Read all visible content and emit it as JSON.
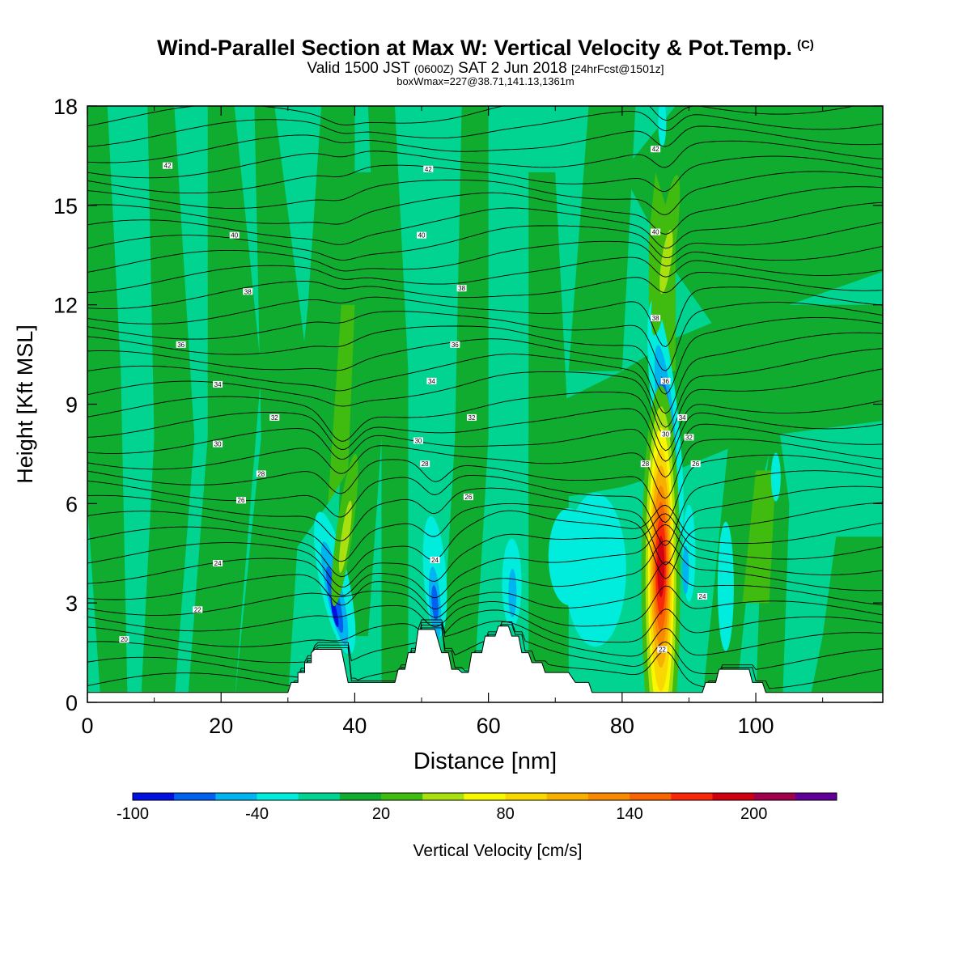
{
  "header": {
    "title": "Wind-Parallel Section at Max W: Vertical Velocity & Pot.Temp.",
    "title_mark": "(C)",
    "valid_prefix": "Valid 1500 JST",
    "valid_utc": "(0600Z)",
    "valid_date": "SAT 2 Jun 2018",
    "forecast_tag": "[24hrFcst@1501z]",
    "box_info": "boxWmax=227@38.71,141.13,1361m"
  },
  "chart_data": {
    "type": "heatmap",
    "title": "Wind-Parallel Section at Max W: Vertical Velocity & Pot.Temp.",
    "xlabel": "Distance [nm]",
    "ylabel": "Height [Kft MSL]",
    "xlim": [
      0,
      119
    ],
    "ylim": [
      0,
      18
    ],
    "x_ticks": [
      0,
      20,
      40,
      60,
      80,
      100
    ],
    "y_ticks": [
      0,
      3,
      6,
      9,
      12,
      15,
      18
    ],
    "colorbar": {
      "label": "Vertical Velocity [cm/s]",
      "tick_labels": [
        "-100",
        "-40",
        "20",
        "80",
        "140",
        "200"
      ],
      "tick_values": [
        -100,
        -40,
        20,
        80,
        140,
        200
      ],
      "bins": [
        -100,
        -80,
        -60,
        -40,
        -20,
        0,
        20,
        40,
        60,
        80,
        100,
        120,
        140,
        160,
        180,
        200,
        220,
        240
      ],
      "colors": [
        "#0010e0",
        "#0060f0",
        "#00b4f0",
        "#00ecdc",
        "#00d490",
        "#10ac30",
        "#40bc10",
        "#a8e010",
        "#f8f800",
        "#f8d800",
        "#f8b000",
        "#f88a00",
        "#f86400",
        "#f82808",
        "#d00010",
        "#a0004c",
        "#600098"
      ]
    },
    "background_level": "#00d490",
    "updrafts": [
      {
        "x": 86,
        "y_center": 3.8,
        "peak_cm_s": 227,
        "label": "max W"
      },
      {
        "x": 86.5,
        "y_center": 13.5,
        "peak_cm_s": 70
      },
      {
        "x": 38.5,
        "y_center": 5,
        "peak_cm_s": 60
      }
    ],
    "downdrafts": [
      {
        "x": 37,
        "y_center": 3,
        "min_cm_s": -100
      },
      {
        "x": 86.5,
        "y_center": 8.5,
        "min_cm_s": -100
      },
      {
        "x": 52,
        "y_center": 3,
        "min_cm_s": -80
      },
      {
        "x": 63.5,
        "y_center": 3.5,
        "min_cm_s": -60
      },
      {
        "x": 76,
        "y_center": 4,
        "min_cm_s": -40
      }
    ],
    "terrain_kft": [
      [
        0,
        0.3
      ],
      [
        30,
        0.3
      ],
      [
        30.5,
        0.6
      ],
      [
        31.5,
        0.6
      ],
      [
        31.5,
        0.9
      ],
      [
        32.5,
        0.9
      ],
      [
        32.5,
        1.2
      ],
      [
        33.5,
        1.2
      ],
      [
        33.5,
        1.5
      ],
      [
        34,
        1.6
      ],
      [
        38,
        1.6
      ],
      [
        39,
        0.6
      ],
      [
        46,
        0.6
      ],
      [
        46.5,
        1.0
      ],
      [
        47.5,
        1.0
      ],
      [
        48,
        1.5
      ],
      [
        49,
        1.5
      ],
      [
        49.5,
        2.2
      ],
      [
        52,
        2.2
      ],
      [
        53,
        1.5
      ],
      [
        54,
        1.5
      ],
      [
        54.5,
        1.0
      ],
      [
        55.5,
        1.0
      ],
      [
        56,
        0.9
      ],
      [
        57,
        0.9
      ],
      [
        57.5,
        1.5
      ],
      [
        59,
        1.5
      ],
      [
        59.5,
        2.0
      ],
      [
        61,
        2.0
      ],
      [
        61.5,
        2.3
      ],
      [
        63,
        2.3
      ],
      [
        63.5,
        2.0
      ],
      [
        64.5,
        2.0
      ],
      [
        65,
        1.5
      ],
      [
        66,
        1.5
      ],
      [
        66.5,
        1.2
      ],
      [
        68,
        1.2
      ],
      [
        68.5,
        0.9
      ],
      [
        72,
        0.9
      ],
      [
        73,
        0.6
      ],
      [
        75,
        0.6
      ],
      [
        75.5,
        0.3
      ],
      [
        92,
        0.3
      ],
      [
        92.5,
        0.6
      ],
      [
        94,
        0.6
      ],
      [
        94.5,
        1.0
      ],
      [
        99,
        1.0
      ],
      [
        99.5,
        0.6
      ],
      [
        101,
        0.6
      ],
      [
        101.5,
        0.3
      ],
      [
        119,
        0.3
      ]
    ],
    "theta_contour_labels": [
      {
        "label": "20",
        "x": 5.5,
        "y": 1.9
      },
      {
        "label": "22",
        "x": 16.5,
        "y": 2.8
      },
      {
        "label": "24",
        "x": 19.5,
        "y": 4.2
      },
      {
        "label": "26",
        "x": 23,
        "y": 6.1
      },
      {
        "label": "28",
        "x": 26,
        "y": 6.9
      },
      {
        "label": "30",
        "x": 19.5,
        "y": 7.8
      },
      {
        "label": "32",
        "x": 28,
        "y": 8.6
      },
      {
        "label": "34",
        "x": 19.5,
        "y": 9.6
      },
      {
        "label": "36",
        "x": 14,
        "y": 10.8
      },
      {
        "label": "38",
        "x": 24,
        "y": 12.4
      },
      {
        "label": "40",
        "x": 22,
        "y": 14.1
      },
      {
        "label": "42",
        "x": 12,
        "y": 16.2
      },
      {
        "label": "42",
        "x": 51,
        "y": 16.1
      },
      {
        "label": "40",
        "x": 50,
        "y": 14.1
      },
      {
        "label": "38",
        "x": 56,
        "y": 12.5
      },
      {
        "label": "36",
        "x": 55,
        "y": 10.8
      },
      {
        "label": "34",
        "x": 51.5,
        "y": 9.7
      },
      {
        "label": "32",
        "x": 57.5,
        "y": 8.6
      },
      {
        "label": "30",
        "x": 49.5,
        "y": 7.9
      },
      {
        "label": "28",
        "x": 50.5,
        "y": 7.2
      },
      {
        "label": "26",
        "x": 57,
        "y": 6.2
      },
      {
        "label": "24",
        "x": 52,
        "y": 4.3
      },
      {
        "label": "42",
        "x": 85,
        "y": 16.7
      },
      {
        "label": "40",
        "x": 85,
        "y": 14.2
      },
      {
        "label": "38",
        "x": 85,
        "y": 11.6
      },
      {
        "label": "36",
        "x": 86.5,
        "y": 9.7
      },
      {
        "label": "34",
        "x": 89,
        "y": 8.6
      },
      {
        "label": "30",
        "x": 86.5,
        "y": 8.1
      },
      {
        "label": "32",
        "x": 90,
        "y": 8.0
      },
      {
        "label": "28",
        "x": 83.5,
        "y": 7.2
      },
      {
        "label": "26",
        "x": 91,
        "y": 7.2
      },
      {
        "label": "24",
        "x": 92,
        "y": 3.2
      },
      {
        "label": "22",
        "x": 86,
        "y": 1.6
      }
    ]
  }
}
